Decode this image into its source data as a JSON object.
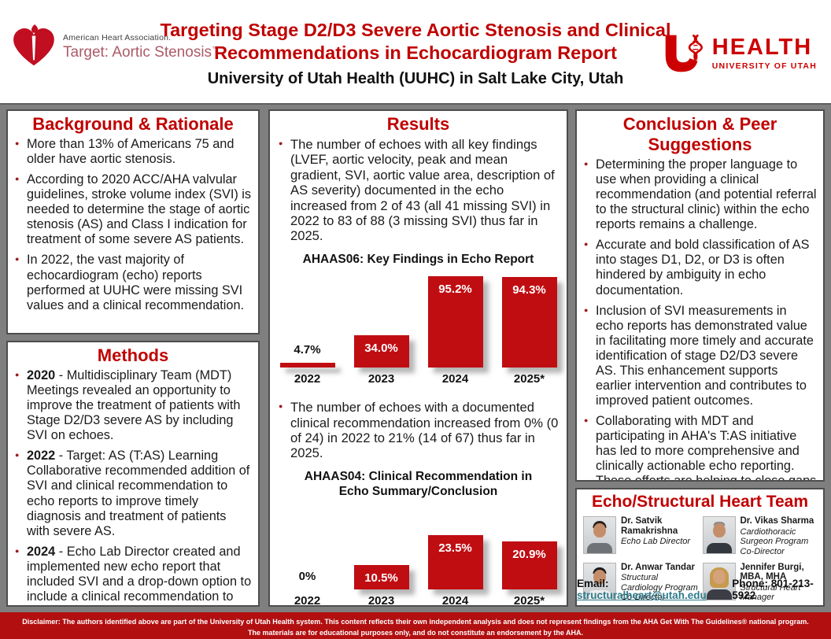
{
  "header": {
    "aha": {
      "org": "American Heart Association.",
      "program": "Target: Aortic Stenosis",
      "trademark": "™"
    },
    "title_line1": "Targeting Stage D2/D3 Severe Aortic Stenosis and Clinical",
    "title_line2": "Recommendations in Echocardiogram Report",
    "subtitle": "University of Utah Health (UUHC) in Salt Lake City, Utah",
    "uhealth": {
      "wordmark": "HEALTH",
      "subtext": "UNIVERSITY OF UTAH"
    }
  },
  "background": {
    "title": "Background & Rationale",
    "bullets": [
      "More than 13% of Americans 75 and older have aortic stenosis.",
      "According to 2020 ACC/AHA valvular guidelines, stroke volume index (SVI) is needed to determine the stage of aortic stenosis (AS) and Class I indication for treatment of some severe AS patients.",
      "In 2022, the vast majority of echocardiogram (echo) reports performed at UUHC were missing SVI values and a clinical recommendation."
    ]
  },
  "methods": {
    "title": "Methods",
    "bullets": [
      {
        "lead": "2020",
        "text": "- Multidisciplinary Team (MDT) Meetings revealed an opportunity to improve the treatment of patients with Stage D2/D3 severe AS by including SVI on echoes."
      },
      {
        "lead": "2022",
        "text": "- Target: AS (T:AS) Learning Collaborative recommended addition of SVI and clinical recommendation to echo reports to improve timely diagnosis and treatment of patients with severe AS."
      },
      {
        "lead": "2024",
        "text": "- Echo Lab Director created and implemented new echo report that included SVI and a drop-down option to include a clinical recommendation to echo report summary."
      }
    ]
  },
  "results": {
    "title": "Results",
    "bullet1": "The number of echoes with all key findings (LVEF, aortic velocity, peak and mean gradient, SVI, aortic value area, description of AS severity) documented in the echo increased from 2 of 43 (all 41 missing SVI) in 2022 to 83 of 88 (3 missing SVI) thus far in 2025.",
    "bullet2": "The number of echoes with a documented clinical recommendation increased from 0% (0 of 24) in 2022 to 21% (14 of 67) thus far in 2025."
  },
  "chart_data": [
    {
      "type": "bar",
      "title": "AHAAS06: Key Findings in Echo Report",
      "categories": [
        "2022",
        "2023",
        "2024",
        "2025*"
      ],
      "values": [
        4.7,
        34.0,
        95.2,
        94.3
      ],
      "labels": [
        "4.7%",
        "34.0%",
        "95.2%",
        "94.3%"
      ],
      "xlabel": "",
      "ylabel": "",
      "ylim": [
        0,
        100
      ],
      "grid": false,
      "legend": false,
      "bar_color": "#C00D12"
    },
    {
      "type": "bar",
      "title": "AHAAS04: Clinical Recommendation in Echo Summary/Conclusion",
      "categories": [
        "2022",
        "2023",
        "2024",
        "2025*"
      ],
      "values": [
        0,
        10.5,
        23.5,
        20.9
      ],
      "labels": [
        "0%",
        "10.5%",
        "23.5%",
        "20.9%"
      ],
      "xlabel": "",
      "ylabel": "",
      "ylim": [
        0,
        30
      ],
      "grid": false,
      "legend": false,
      "bar_color": "#C00D12"
    }
  ],
  "conclusion": {
    "title": "Conclusion & Peer Suggestions",
    "bullets": [
      "Determining the proper language to use when providing a clinical recommendation (and potential referral to the structural clinic) within the echo reports remains a challenge.",
      "Accurate and bold classification of AS into stages D1, D2, or D3 is often hindered by ambiguity in echo documentation.",
      "Inclusion of SVI measurements in echo reports has demonstrated value in facilitating more timely and accurate identification of stage D2/D3 severe AS. This enhancement supports earlier intervention and contributes to improved patient outcomes.",
      "Collaborating with MDT and participating in AHA's T:AS initiative has led to more comprehensive and clinically actionable echo reporting. These efforts are helping to close gaps in care by promoting consistent staging, timely diagnosis, and evidence-based treatment of AS."
    ]
  },
  "team": {
    "title": "Echo/Structural Heart Team",
    "members": [
      {
        "name": "Dr. Satvik Ramakrishna",
        "role": "Echo Lab Director",
        "photo": "satvik-ramakrishna-headshot"
      },
      {
        "name": "Dr. Vikas Sharma",
        "role": "Cardiothoracic Surgeon Program Co-Director",
        "photo": "vikas-sharma-headshot"
      },
      {
        "name": "Dr. Anwar Tandar",
        "role": "Structural Cardiology Program Co-Director",
        "photo": "anwar-tandar-headshot"
      },
      {
        "name": "Jennifer Burgi, MBA, MHA",
        "role": "Structural Heart Manager",
        "photo": "jennifer-burgi-headshot"
      }
    ],
    "email_label": "Email:",
    "email": "structuralheart@utah.edu",
    "phone_label": "Phone:",
    "phone": "801-213-5922"
  },
  "footer": {
    "line1": "Disclaimer: The authors identified above are part of the University of Utah Health system. This content reflects their own independent analysis and does not represent findings from the AHA Get With The Guidelines® national program.",
    "line2": "The materials are for educational purposes only, and do not constitute an endorsement by the AHA."
  },
  "colors": {
    "accent_red": "#C00000",
    "bar_red": "#C00D12",
    "footer_red": "#B20F10",
    "aha_red": "#C10E21",
    "program_rose": "#AC5A68",
    "uofu_red": "#CC0000",
    "link_teal": "#2E7B8C",
    "background_gray": "#7F7F7F"
  }
}
